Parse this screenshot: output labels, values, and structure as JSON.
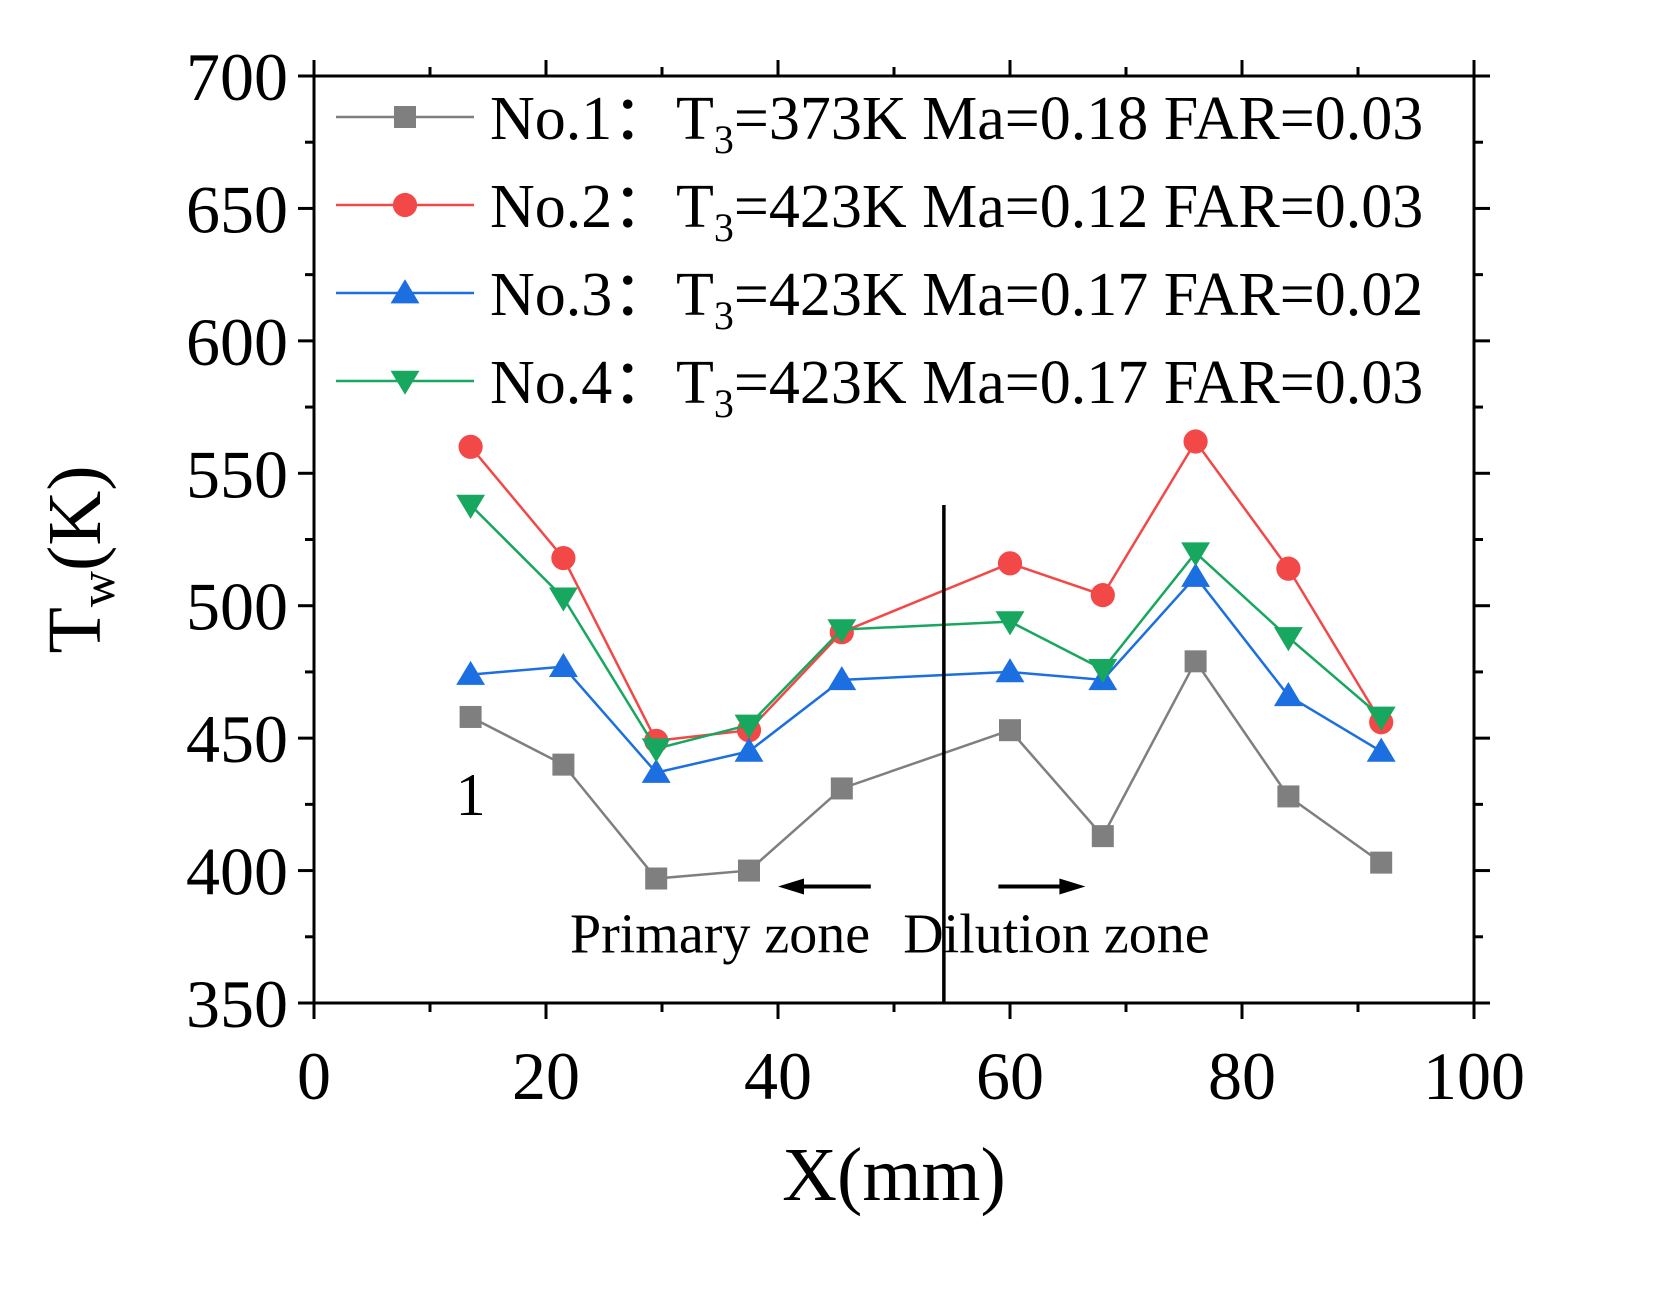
{
  "chart_data": {
    "type": "line",
    "xlabel": "X(mm)",
    "ylabel_main": "T",
    "ylabel_sub": "w",
    "ylabel_unit": "(K)",
    "xlim": [
      0,
      100
    ],
    "ylim": [
      350,
      700
    ],
    "xticks": [
      0,
      20,
      40,
      60,
      80,
      100
    ],
    "yticks": [
      350,
      400,
      450,
      500,
      550,
      600,
      650,
      700
    ],
    "xtick_labels": [
      "0",
      "20",
      "40",
      "60",
      "80",
      "100"
    ],
    "ytick_labels": [
      "350",
      "400",
      "450",
      "500",
      "550",
      "600",
      "650",
      "700"
    ],
    "x": [
      13.5,
      21.5,
      29.5,
      37.5,
      45.5,
      60,
      68,
      76,
      84,
      92
    ],
    "series": [
      {
        "name": "No.1",
        "legend_sep": "：",
        "legend_t": "T",
        "legend_sub": "3",
        "legend_rest": "=373K Ma=0.18 FAR=0.03",
        "color": "#7f7f7f",
        "marker": "square",
        "values": [
          458,
          440,
          397,
          400,
          431,
          453,
          413,
          479,
          428,
          403
        ]
      },
      {
        "name": "No.2",
        "legend_sep": "：",
        "legend_t": "T",
        "legend_sub": "3",
        "legend_rest": "=423K Ma=0.12 FAR=0.03",
        "color": "#f24848",
        "marker": "circle",
        "values": [
          560,
          518,
          449,
          453,
          490,
          516,
          504,
          562,
          514,
          456
        ]
      },
      {
        "name": "No.3",
        "legend_sep": "：",
        "legend_t": "T",
        "legend_sub": "3",
        "legend_rest": "=423K Ma=0.17 FAR=0.02",
        "color": "#1b6fe0",
        "marker": "triangle-up",
        "values": [
          474,
          477,
          437,
          445,
          472,
          475,
          472,
          511,
          466,
          445
        ]
      },
      {
        "name": "No.4",
        "legend_sep": "：",
        "legend_t": "T",
        "legend_sub": "3",
        "legend_rest": "=423K Ma=0.17 FAR=0.03",
        "color": "#17a75e",
        "marker": "triangle-down",
        "values": [
          538,
          503,
          446,
          455,
          491,
          494,
          476,
          520,
          488,
          458
        ]
      }
    ],
    "divider_x": 54.3,
    "annotations": [
      {
        "text": "Primary zone",
        "x": 35,
        "y": 369
      },
      {
        "text": "Dilution zone",
        "x": 64,
        "y": 369
      },
      {
        "text": "1",
        "x": 13.5,
        "y": 421
      }
    ],
    "arrows": [
      {
        "from_x": 48,
        "to_x": 40,
        "y": 394
      },
      {
        "from_x": 59,
        "to_x": 66.5,
        "y": 394
      }
    ],
    "legend_position": "top"
  }
}
